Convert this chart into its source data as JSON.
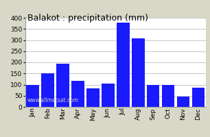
{
  "months": [
    "Jan",
    "Feb",
    "Mar",
    "Apr",
    "May",
    "Jun",
    "Jul",
    "Aug",
    "Sep",
    "Oct",
    "Nov",
    "Dec"
  ],
  "values": [
    100,
    150,
    195,
    118,
    82,
    105,
    380,
    308,
    97,
    97,
    47,
    85
  ],
  "bar_color": "#1a1aff",
  "title": "Balakot : precipitation (mm)",
  "ylim": [
    0,
    400
  ],
  "yticks": [
    0,
    50,
    100,
    150,
    200,
    250,
    300,
    350,
    400
  ],
  "background_color": "#d8d8c8",
  "plot_bg_color": "#ffffff",
  "grid_color": "#bbbbbb",
  "watermark": "www.allmetsat.com",
  "title_fontsize": 9,
  "tick_fontsize": 6.5,
  "watermark_fontsize": 5.5
}
